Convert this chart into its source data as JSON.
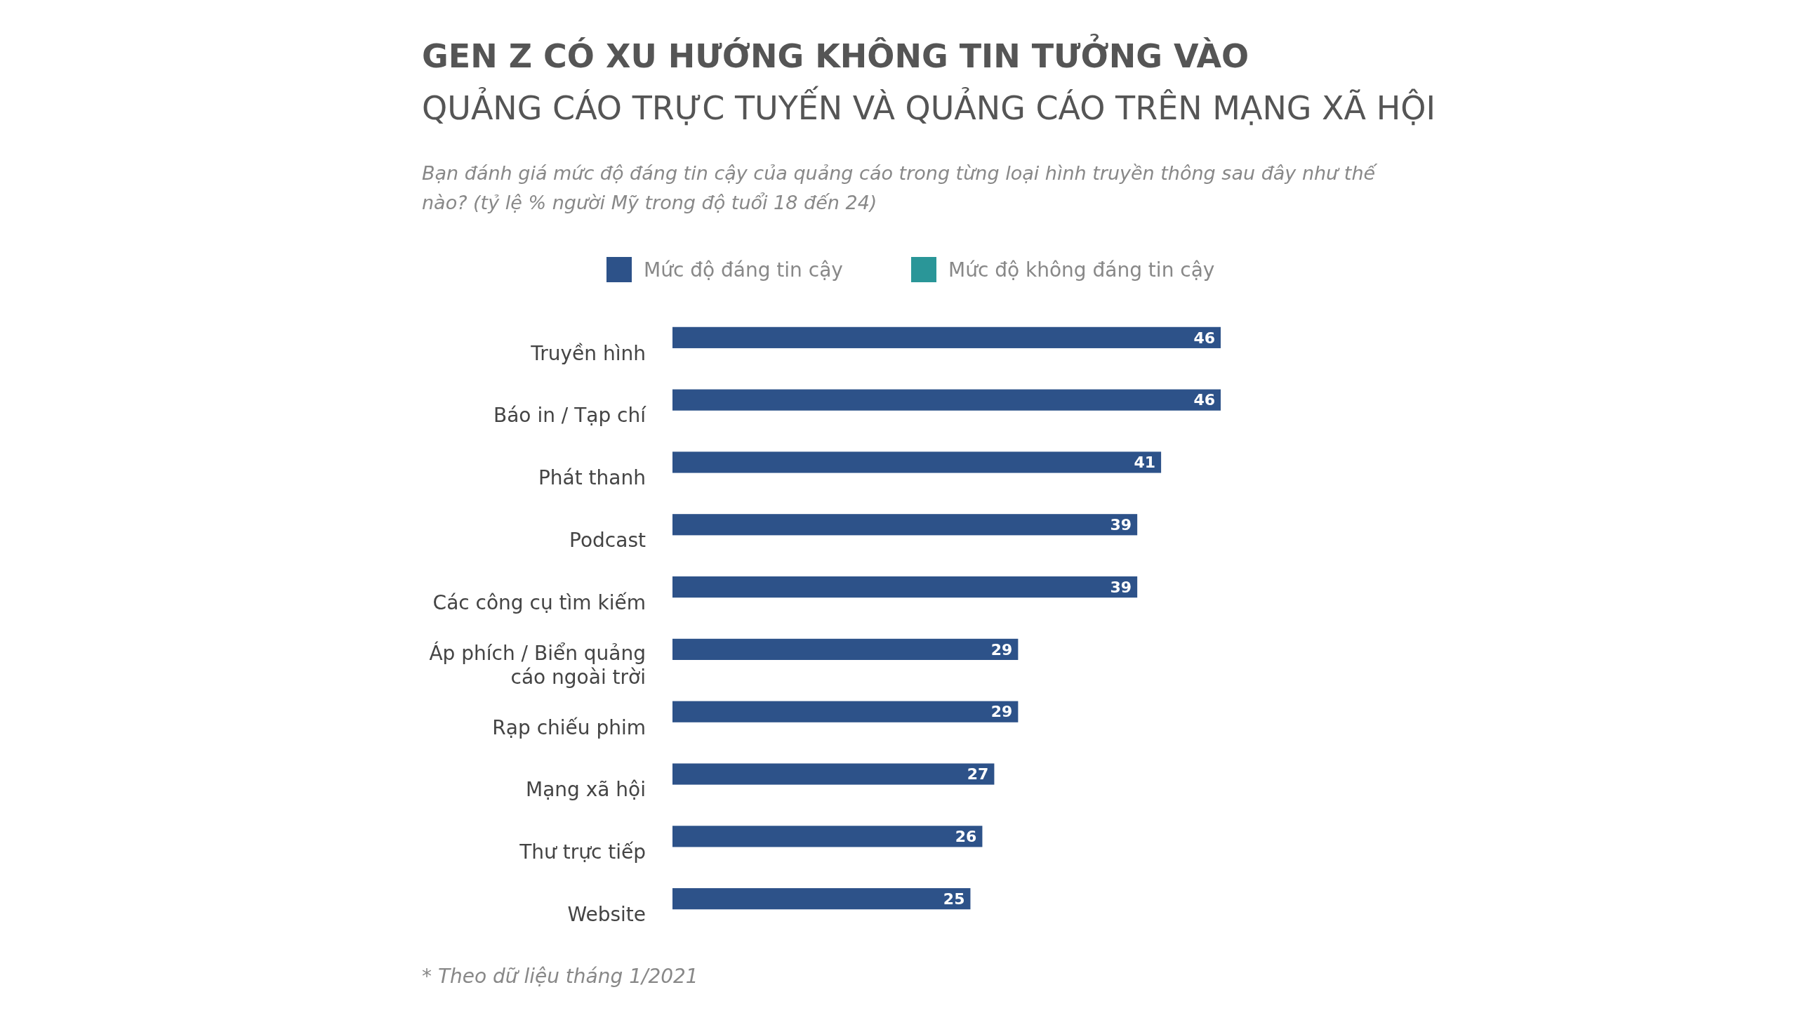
{
  "chart_data": {
    "type": "bar",
    "orientation": "horizontal",
    "title": "GEN Z CÓ XU HƯỚNG KHÔNG TIN TƯỞNG VÀO QUẢNG CÁO TRỰC TUYẾN VÀ QUẢNG CÁO TRÊN MẠNG XÃ HỘI",
    "subtitle": "Bạn đánh giá mức độ đáng tin cậy của quảng cáo trong từng loại hình truyền thông sau đây như thế nào? (tỷ lệ % người Mỹ trong độ tuổi 18 đến 24)",
    "categories": [
      "Truyền hình",
      "Báo in / Tạp chí",
      "Phát thanh",
      "Podcast",
      "Các công cụ tìm kiếm",
      "Áp phích / Biển quảng cáo ngoài trời",
      "Rạp chiếu phim",
      "Mạng xã hội",
      "Thư trực tiếp",
      "Website"
    ],
    "series": [
      {
        "name": "Mức độ đáng tin cậy",
        "color": "#2d5289",
        "values": [
          46,
          46,
          41,
          39,
          39,
          29,
          29,
          27,
          26,
          25
        ]
      },
      {
        "name": "Mức độ không đáng tin cậy",
        "color": "#2a9698",
        "values": [
          null,
          null,
          null,
          null,
          null,
          null,
          null,
          null,
          null,
          null
        ]
      }
    ],
    "data_labels": true,
    "legend": "top",
    "annotations": [
      "* Theo dữ liệu tháng 1/2021"
    ]
  }
}
